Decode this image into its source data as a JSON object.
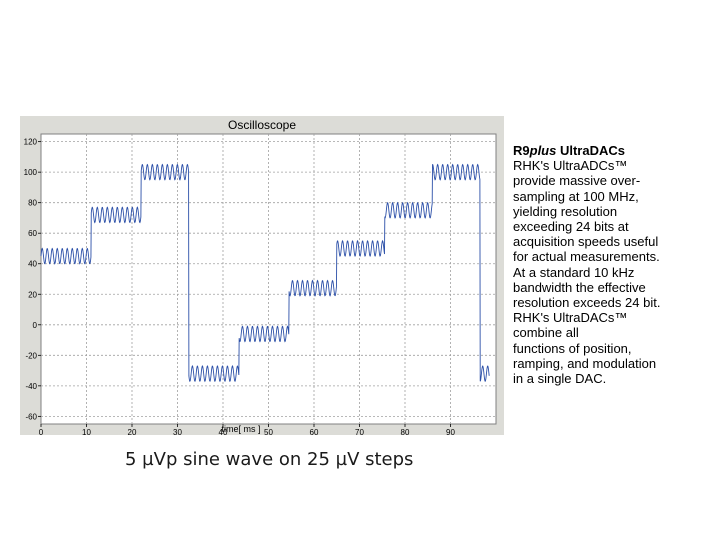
{
  "colors": {
    "panel": "#dcdcd7",
    "plot_bg": "#ffffff",
    "grid": "#a0a0a0",
    "trace": "#2b4fa8"
  },
  "side_text": {
    "heading_prefix": "R9",
    "heading_italic": "plus",
    "heading_suffix": " UltraDACs",
    "lines": [
      "RHK's UltraADCs™",
      "provide massive over-",
      "sampling at 100 MHz,",
      "yielding resolution",
      "exceeding 24 bits at",
      "acquisition speeds useful",
      "for actual measurements.",
      "At a standard 10 kHz",
      "bandwidth the effective",
      "resolution exceeds 24 bit.",
      "RHK's UltraDACs™",
      "combine all",
      "functions of position,",
      "ramping, and modulation",
      "in a single DAC."
    ]
  },
  "caption": "5 µVp sine wave on 25 µV steps",
  "chart_data": {
    "type": "line",
    "title": "Oscilloscope",
    "xlabel": "time[ ms ]",
    "ylabel": "",
    "xlim": [
      0,
      100
    ],
    "ylim": [
      -65,
      125
    ],
    "xticks": [
      0,
      10,
      20,
      30,
      40,
      50,
      60,
      70,
      80,
      90
    ],
    "yticks": [
      -60,
      -40,
      -20,
      0,
      20,
      40,
      60,
      80,
      100,
      120
    ],
    "grid": true,
    "series": [
      {
        "sine_amplitude": 5,
        "sine_period_ms": 1.1,
        "steps": [
          {
            "x_start": 0,
            "x_end": 11,
            "level": 45
          },
          {
            "x_start": 11,
            "x_end": 22,
            "level": 72
          },
          {
            "x_start": 22,
            "x_end": 32.5,
            "level": 100
          },
          {
            "x_start": 32.5,
            "x_end": 43.5,
            "level": -32
          },
          {
            "x_start": 43.5,
            "x_end": 54.5,
            "level": -6
          },
          {
            "x_start": 54.5,
            "x_end": 65,
            "level": 24
          },
          {
            "x_start": 65,
            "x_end": 75.5,
            "level": 50
          },
          {
            "x_start": 75.5,
            "x_end": 86,
            "level": 75
          },
          {
            "x_start": 86,
            "x_end": 96.5,
            "level": 100
          },
          {
            "x_start": 96.5,
            "x_end": 98.5,
            "level": -32
          }
        ]
      }
    ]
  }
}
